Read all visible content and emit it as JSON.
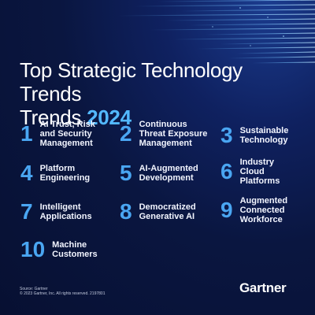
{
  "title": {
    "text": "Top Strategic Technology Trends",
    "year": "2024"
  },
  "trends": [
    {
      "number": "1",
      "label": "AI Trust, Risk\nand Security\nManagement"
    },
    {
      "number": "2",
      "label": "Continuous\nThreat Exposure\nManagement"
    },
    {
      "number": "3",
      "label": "Sustainable\nTechnology"
    },
    {
      "number": "4",
      "label": "Platform\nEngineering"
    },
    {
      "number": "5",
      "label": "AI-Augmented\nDevelopment"
    },
    {
      "number": "6",
      "label": "Industry\nCloud\nPlatforms"
    },
    {
      "number": "7",
      "label": "Intelligent\nApplications"
    },
    {
      "number": "8",
      "label": "Democratized\nGenerative AI"
    },
    {
      "number": "9",
      "label": "Augmented\nConnected\nWorkforce"
    },
    {
      "number": "10",
      "label": "Machine\nCustomers"
    }
  ],
  "source": {
    "line1": "Source: Gartner",
    "line2": "© 2023 Gartner, Inc. All rights reserved. 2197801"
  },
  "brand": "Gartner",
  "colors": {
    "background": "#0a1640",
    "accent": "#4aa6f2",
    "year": "#53b8ff"
  }
}
